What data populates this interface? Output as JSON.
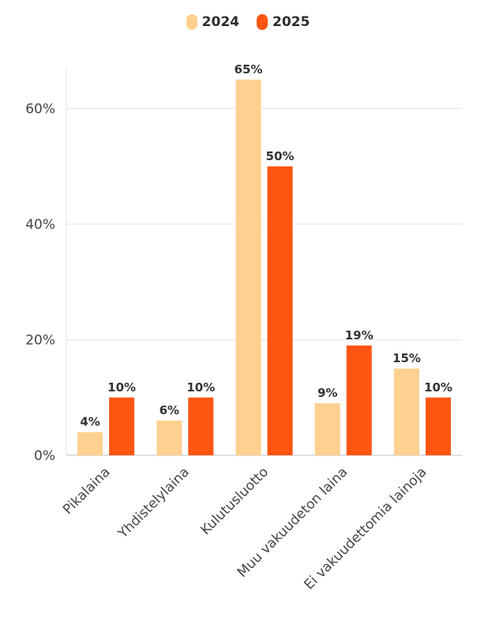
{
  "chart_data": {
    "type": "bar",
    "categories": [
      "Pikalaina",
      "Yhdistelylaina",
      "Kulutusluotto",
      "Muu vakuudeton laina",
      "Ei vakuudettomia lainoja"
    ],
    "series": [
      {
        "name": "2024",
        "color": "#ffd08f",
        "values": [
          4,
          6,
          65,
          9,
          15
        ],
        "labels": [
          "4%",
          "6%",
          "65%",
          "9%",
          "15%"
        ]
      },
      {
        "name": "2025",
        "color": "#ff5512",
        "values": [
          10,
          10,
          50,
          19,
          10
        ],
        "labels": [
          "10%",
          "10%",
          "50%",
          "19%",
          "10%"
        ]
      }
    ],
    "yticks": [
      {
        "value": 0,
        "label": "0%"
      },
      {
        "value": 20,
        "label": "20%"
      },
      {
        "value": 40,
        "label": "40%"
      },
      {
        "value": 60,
        "label": "60%"
      }
    ],
    "ylim": [
      0,
      67
    ],
    "grid": true,
    "legend_position": "top-center",
    "title": "",
    "xlabel": "",
    "ylabel": ""
  }
}
